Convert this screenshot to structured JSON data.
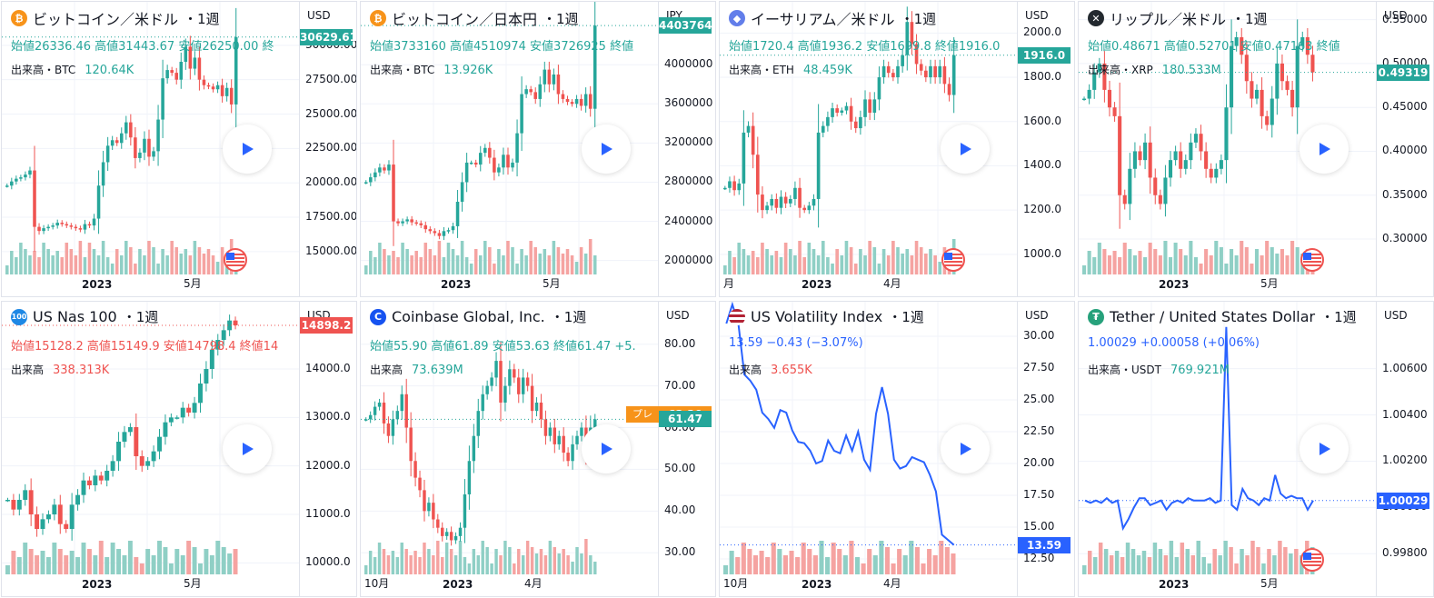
{
  "colors": {
    "up": "#26a69a",
    "down": "#ef5350",
    "line": "#2962ff",
    "upvol": "#8fcfc5",
    "downvol": "#f5a3a1",
    "pre": "#f7931a"
  },
  "panels": [
    {
      "title": "ビットコイン／米ドル",
      "interval": "・1週",
      "icon": "bitcoin-icon",
      "icon_glyph": "₿",
      "icon_color": "#f7931a",
      "currency": "USD",
      "ohlc": "始値26336.46 高値31443.67 安値26250.00 終",
      "vol_label": "出来高・BTC",
      "vol_value": "120.64K",
      "price_tag": "30629.61",
      "tag_color": "#26a69a",
      "ticks": [
        "30000.00",
        "27500.00",
        "25000.00",
        "22500.00",
        "20000.00",
        "17500.00",
        "15000.00"
      ],
      "xlabels": [
        "2023",
        "5月"
      ],
      "flag": true,
      "type": "candle",
      "closes": [
        19800,
        20100,
        20300,
        20400,
        20600,
        20900,
        16800,
        16500,
        16700,
        16800,
        16900,
        17100,
        17000,
        16900,
        16800,
        16700,
        16600,
        17000,
        16900,
        17400,
        19800,
        21500,
        22700,
        23100,
        22900,
        23600,
        24400,
        23300,
        21800,
        22200,
        23200,
        21900,
        22300,
        24600,
        27600,
        28200,
        28000,
        27500,
        28800,
        29900,
        28300,
        29100,
        27500,
        27100,
        27000,
        26800,
        27100,
        26300,
        26900,
        25700,
        30600
      ],
      "scale": [
        14000,
        32500
      ]
    },
    {
      "title": "ビットコイン／日本円",
      "interval": "・1週",
      "icon": "bitcoin-icon",
      "icon_glyph": "₿",
      "icon_color": "#f7931a",
      "currency": "JPY",
      "ohlc": "始値3733160 高値4510974 安値3726925 終値",
      "vol_label": "出来高・BTC",
      "vol_value": "13.926K",
      "price_tag": "4403764",
      "tag_color": "#26a69a",
      "ticks": [
        "4000000",
        "3600000",
        "3200000",
        "2800000",
        "2400000",
        "2000000"
      ],
      "xlabels": [
        "2023",
        "5月"
      ],
      "flag": false,
      "type": "candle",
      "closes": [
        2800000,
        2850000,
        2900000,
        2950000,
        2920000,
        2980000,
        2400000,
        2380000,
        2400000,
        2420000,
        2390000,
        2380000,
        2360000,
        2320000,
        2300000,
        2280000,
        2250000,
        2300000,
        2310000,
        2350000,
        2600000,
        2800000,
        3000000,
        3000000,
        2980000,
        3100000,
        3150000,
        3050000,
        2900000,
        2950000,
        3080000,
        2950000,
        3000000,
        3300000,
        3700000,
        3750000,
        3720000,
        3650000,
        3800000,
        3950000,
        3800000,
        3900000,
        3700000,
        3650000,
        3620000,
        3600000,
        3650000,
        3580000,
        3700000,
        3550000,
        4400000
      ],
      "scale": [
        1950000,
        4550000
      ]
    },
    {
      "title": "イーサリアム／米ドル",
      "interval": "・1週",
      "icon": "ethereum-icon",
      "icon_glyph": "◆",
      "icon_color": "#627eea",
      "currency": "USD",
      "ohlc": "始値1720.4 高値1936.2 安値1699.8 終値1916.0",
      "vol_label": "出来高・ETH",
      "vol_value": "48.459K",
      "price_tag": "1916.0",
      "tag_color": "#26a69a",
      "ticks": [
        "2000.0",
        "1800.0",
        "1600.0",
        "1400.0",
        "1200.0",
        "1000.0"
      ],
      "xlabels": [
        "月",
        "2023",
        "4月"
      ],
      "flag": true,
      "type": "candle",
      "closes": [
        1300,
        1330,
        1290,
        1320,
        1550,
        1580,
        1450,
        1270,
        1200,
        1220,
        1250,
        1210,
        1260,
        1230,
        1250,
        1300,
        1210,
        1200,
        1220,
        1250,
        1550,
        1580,
        1620,
        1660,
        1640,
        1650,
        1670,
        1600,
        1570,
        1620,
        1700,
        1640,
        1700,
        1800,
        1850,
        1820,
        1800,
        1850,
        1900,
        2050,
        1950,
        1860,
        1830,
        1800,
        1850,
        1800,
        1850,
        1770,
        1720,
        1900
      ],
      "scale": [
        950,
        2100
      ]
    },
    {
      "title": "リップル／米ドル",
      "interval": "・1週",
      "icon": "ripple-icon",
      "icon_glyph": "✕",
      "icon_color": "#23292f",
      "currency": "USD",
      "ohlc": "始値0.48671 高値0.52701 安値0.47163 終値",
      "vol_label": "出来高・XRP",
      "vol_value": "180.533M",
      "price_tag": "0.49319",
      "tag_color": "#26a69a",
      "ticks": [
        "0.55000",
        "0.50000",
        "0.45000",
        "0.40000",
        "0.35000",
        "0.30000"
      ],
      "xlabels": [
        "2023",
        "5月"
      ],
      "flag": true,
      "type": "candle",
      "closes": [
        0.46,
        0.47,
        0.49,
        0.5,
        0.47,
        0.45,
        0.44,
        0.35,
        0.34,
        0.38,
        0.4,
        0.39,
        0.41,
        0.37,
        0.35,
        0.34,
        0.37,
        0.39,
        0.4,
        0.38,
        0.39,
        0.41,
        0.42,
        0.4,
        0.38,
        0.37,
        0.38,
        0.39,
        0.45,
        0.52,
        0.53,
        0.51,
        0.48,
        0.46,
        0.47,
        0.44,
        0.43,
        0.46,
        0.5,
        0.48,
        0.47,
        0.45,
        0.52,
        0.53,
        0.51,
        0.49
      ],
      "scale": [
        0.27,
        0.56
      ]
    },
    {
      "title": "US Nas 100",
      "interval": "・1週",
      "icon": "nasdaq-icon",
      "icon_glyph": "100",
      "icon_color": "#1e88e5",
      "currency": "USD",
      "ohlc": "始値15128.2 高値15149.9 安値14798.4 終値14",
      "vol_label": "出来高",
      "vol_value": "338.313K",
      "price_tag": "14898.2",
      "tag_color": "#ef5350",
      "ticks": [
        "14000.0",
        "13000.0",
        "12000.0",
        "11000.0",
        "10000.0"
      ],
      "xlabels": [
        "2023",
        "5月"
      ],
      "flag": false,
      "type": "candle",
      "closes": [
        11300,
        11100,
        11300,
        11500,
        11000,
        10700,
        10900,
        11000,
        11200,
        10800,
        10700,
        11200,
        11400,
        11700,
        11600,
        11800,
        11700,
        11900,
        12100,
        12500,
        12700,
        12800,
        12200,
        12000,
        12100,
        12300,
        12600,
        12900,
        13000,
        13000,
        13200,
        13100,
        13300,
        13700,
        14000,
        14400,
        14600,
        14800,
        15000,
        14900
      ],
      "scale": [
        9950,
        15200
      ]
    },
    {
      "title": "Coinbase Global, Inc.",
      "interval": "・1週",
      "icon": "coinbase-icon",
      "icon_glyph": "C",
      "icon_color": "#1652f0",
      "currency": "USD",
      "ohlc": "始値55.90 高値61.89 安値53.63 終値61.47 +5.",
      "vol_label": "出来高",
      "vol_value": "73.639M",
      "price_tag": "61.47",
      "tag_color": "#26a69a",
      "pre_label": "プレ",
      "pre_value": "63.20",
      "ticks": [
        "80.00",
        "70.00",
        "60.00",
        "50.00",
        "40.00",
        "30.00"
      ],
      "xlabels": [
        "10月",
        "2023",
        "4月"
      ],
      "flag": false,
      "type": "candle",
      "closes": [
        62,
        63,
        65,
        66,
        61,
        58,
        62,
        64,
        68,
        60,
        52,
        48,
        45,
        40,
        42,
        38,
        36,
        34,
        35,
        33,
        34,
        36,
        44,
        52,
        58,
        64,
        68,
        70,
        72,
        76,
        66,
        70,
        74,
        72,
        68,
        72,
        70,
        64,
        66,
        62,
        58,
        60,
        56,
        58,
        54,
        52,
        56,
        58,
        60,
        54,
        60,
        62
      ],
      "scale": [
        27,
        88
      ]
    },
    {
      "title": "US Volatility Index",
      "interval": "・1週",
      "icon": "us-flag-icon",
      "icon_glyph": "",
      "icon_color": "#b22234",
      "currency": "USD",
      "ohlc": "13.59 −0.43 (−3.07%)",
      "vol_label": "出来高",
      "vol_value": "3.655K",
      "price_tag": "13.59",
      "tag_color": "#2962ff",
      "ticks": [
        "30.00",
        "27.50",
        "25.00",
        "22.50",
        "20.00",
        "17.50",
        "15.00",
        "12.50"
      ],
      "xlabels": [
        "10月",
        "2023",
        "4月"
      ],
      "flag": false,
      "type": "line",
      "closes": [
        31,
        32.5,
        31,
        27,
        26.5,
        25.8,
        24,
        23.5,
        22.8,
        24.2,
        24,
        22.6,
        21.7,
        21.6,
        21,
        20,
        20.2,
        21.8,
        21,
        20.8,
        22.2,
        21,
        22.5,
        20.3,
        19.5,
        23.9,
        26,
        23.9,
        20.3,
        19.6,
        19.8,
        20.5,
        20.3,
        20.1,
        19.1,
        17.8,
        14.4,
        14,
        13.6
      ],
      "scale": [
        12,
        32
      ]
    },
    {
      "title": "Tether / United States Dollar",
      "interval": "・1週",
      "icon": "tether-icon",
      "icon_glyph": "₮",
      "icon_color": "#26a17b",
      "currency": "USD",
      "ohlc": "1.00029 +0.00058 (+0.06%)",
      "vol_label": "出来高・USDT",
      "vol_value": "769.921M",
      "price_tag": "1.00029",
      "tag_color": "#2962ff",
      "ticks": [
        "1.00600",
        "1.00400",
        "1.00200",
        "1.00000",
        "0.99800"
      ],
      "xlabels": [
        "2023",
        "5月"
      ],
      "flag": true,
      "type": "line",
      "closes": [
        1.0003,
        1.0002,
        1.0003,
        1.0002,
        1.0004,
        1.0002,
        1.0003,
        0.9991,
        0.9995,
        1.0,
        1.0004,
        1.0004,
        1.0001,
        1.0002,
        1.0003,
        0.9999,
        1.0002,
        1.0003,
        1.0002,
        1.0004,
        1.0003,
        1.0003,
        1.0003,
        1.0004,
        1.0002,
        1.0003,
        1.0078,
        1.0001,
        0.9999,
        1.0008,
        1.0004,
        1.0003,
        1.0001,
        1.0004,
        1.0003,
        1.0014,
        1.0006,
        1.0004,
        1.0005,
        1.0004,
        1.0004,
        0.9999,
        1.0003
      ],
      "scale": [
        0.9975,
        1.0085
      ]
    }
  ]
}
